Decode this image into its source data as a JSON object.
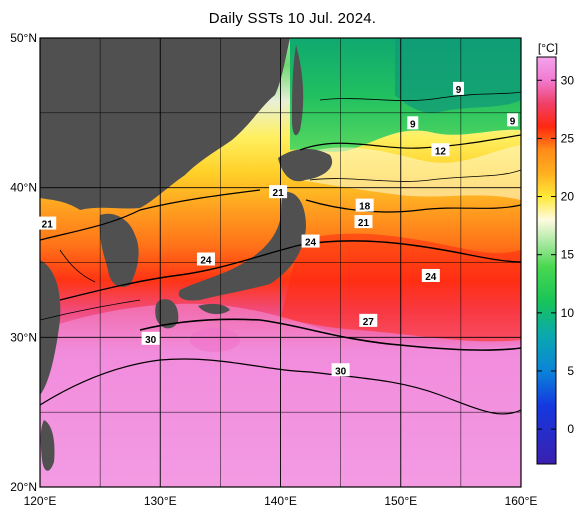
{
  "map": {
    "title": "Daily SSTs 10 Jul. 2024.",
    "lon_range": [
      120,
      160
    ],
    "lat_range": [
      20,
      50
    ],
    "lon_ticks": [
      {
        "value": 120,
        "label": "120°E"
      },
      {
        "value": 130,
        "label": "130°E"
      },
      {
        "value": 140,
        "label": "140°E"
      },
      {
        "value": 150,
        "label": "150°E"
      },
      {
        "value": 160,
        "label": "160°E"
      }
    ],
    "lat_ticks": [
      {
        "value": 50,
        "label": "50°N"
      },
      {
        "value": 40,
        "label": "40°N"
      },
      {
        "value": 30,
        "label": "30°N"
      },
      {
        "value": 20,
        "label": "20°N"
      }
    ],
    "land_color": "#505050",
    "contour_labels": [
      {
        "text": "9",
        "lon": 154.8,
        "lat": 46.6
      },
      {
        "text": "9",
        "lon": 151.0,
        "lat": 44.3
      },
      {
        "text": "9",
        "lon": 159.3,
        "lat": 44.5
      },
      {
        "text": "12",
        "lon": 153.3,
        "lat": 42.5
      },
      {
        "text": "21",
        "lon": 139.8,
        "lat": 39.7
      },
      {
        "text": "18",
        "lon": 147.0,
        "lat": 38.8
      },
      {
        "text": "21",
        "lon": 146.9,
        "lat": 37.7
      },
      {
        "text": "21",
        "lon": 120.6,
        "lat": 37.6
      },
      {
        "text": "24",
        "lon": 142.5,
        "lat": 36.4
      },
      {
        "text": "24",
        "lon": 133.8,
        "lat": 35.2
      },
      {
        "text": "24",
        "lon": 152.5,
        "lat": 34.1
      },
      {
        "text": "27",
        "lon": 147.3,
        "lat": 31.1
      },
      {
        "text": "30",
        "lon": 129.2,
        "lat": 29.9
      },
      {
        "text": "30",
        "lon": 145.0,
        "lat": 27.8
      }
    ]
  },
  "colorbar": {
    "unit": "[°C]",
    "range": [
      -3,
      32
    ],
    "ticks": [
      {
        "value": 30,
        "label": "30"
      },
      {
        "value": 25,
        "label": "25"
      },
      {
        "value": 20,
        "label": "20"
      },
      {
        "value": 15,
        "label": "15"
      },
      {
        "value": 10,
        "label": "10"
      },
      {
        "value": 5,
        "label": "5"
      },
      {
        "value": 0,
        "label": "0"
      }
    ],
    "stops": [
      {
        "value": -3,
        "color": "#3a20b0"
      },
      {
        "value": 2,
        "color": "#1438e0"
      },
      {
        "value": 5,
        "color": "#0a84d8"
      },
      {
        "value": 8,
        "color": "#0aa8b0"
      },
      {
        "value": 11,
        "color": "#18c458"
      },
      {
        "value": 14,
        "color": "#4ad850"
      },
      {
        "value": 16,
        "color": "#a8e8a0"
      },
      {
        "value": 18,
        "color": "#fffbe0"
      },
      {
        "value": 20,
        "color": "#ffe838"
      },
      {
        "value": 22,
        "color": "#ffb020"
      },
      {
        "value": 24,
        "color": "#ff8c18"
      },
      {
        "value": 26,
        "color": "#ff2810"
      },
      {
        "value": 28,
        "color": "#f04068"
      },
      {
        "value": 30,
        "color": "#f07ad0"
      },
      {
        "value": 32,
        "color": "#f4a4ec"
      }
    ]
  }
}
